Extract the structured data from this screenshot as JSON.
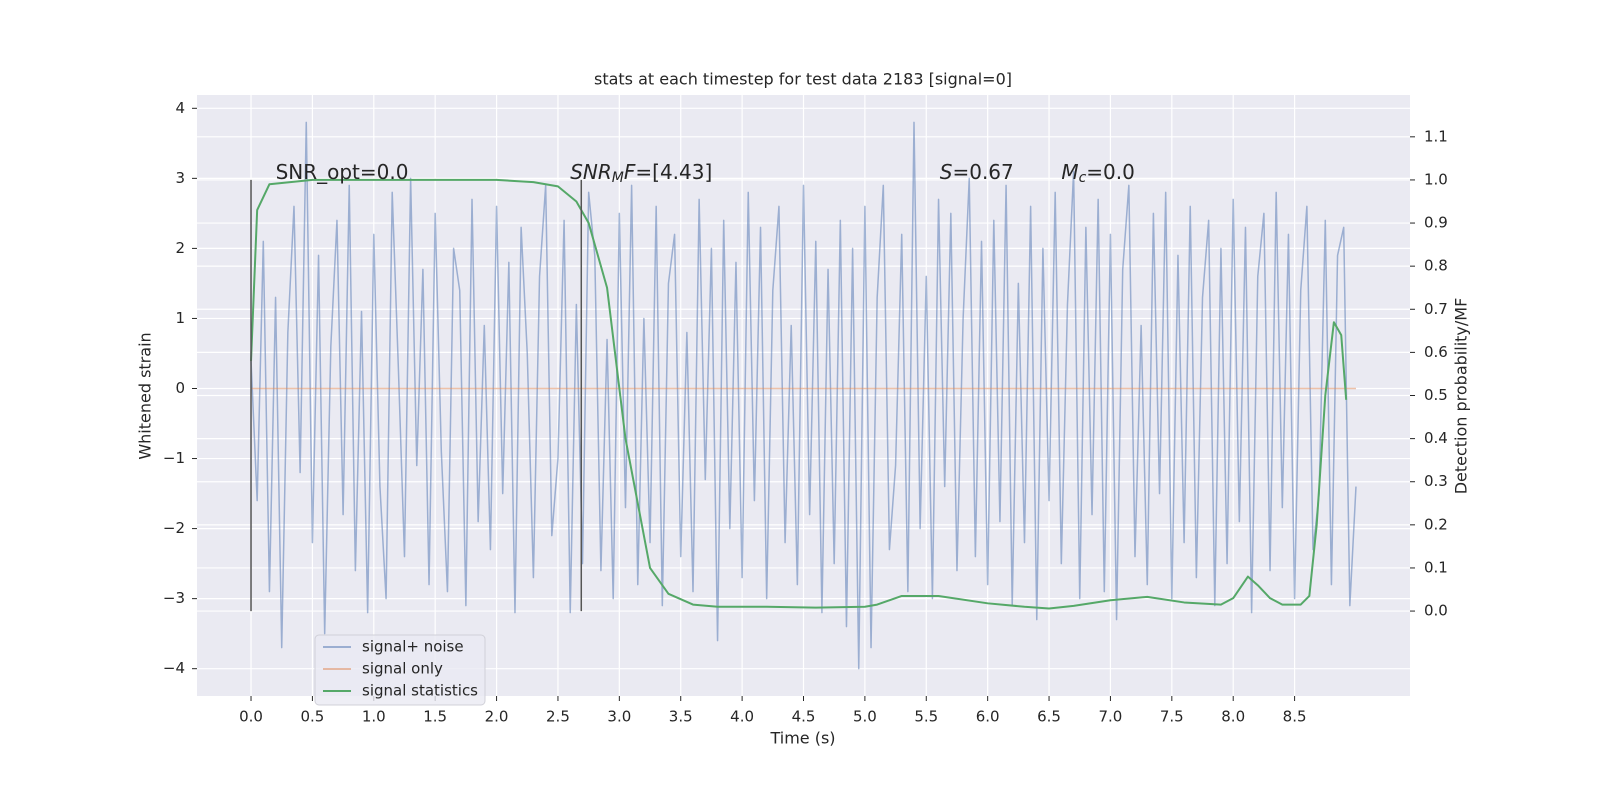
{
  "chart_data": {
    "type": "line",
    "title": "stats at each timestep for test data 2183 [signal=0]",
    "x_label": "Time (s)",
    "y_label": "Whitened strain",
    "y2_label": "Detection probability/MF",
    "xlim": [
      -0.44,
      9.44
    ],
    "ylim": [
      -4.39,
      4.19
    ],
    "y2lim": [
      -0.197,
      1.197
    ],
    "xticks": [
      {
        "value": 0,
        "label": "0.0"
      },
      0.5,
      {
        "value": 1,
        "label": "1.0"
      },
      1.5,
      {
        "value": 2,
        "label": "2.0"
      },
      2.5,
      {
        "value": 3,
        "label": "3.0"
      },
      3.5,
      {
        "value": 4,
        "label": "4.0"
      },
      4.5,
      {
        "value": 5,
        "label": "5.0"
      },
      5.5,
      {
        "value": 6,
        "label": "6.0"
      },
      6.5,
      {
        "value": 7,
        "label": "7.0"
      },
      7.5,
      {
        "value": 8,
        "label": "8.0"
      },
      8.5
    ],
    "yticks": [
      {
        "value": -4,
        "label": "−4"
      },
      {
        "value": -3,
        "label": "−3"
      },
      {
        "value": -2,
        "label": "−2"
      },
      {
        "value": -1,
        "label": "−1"
      },
      0,
      1,
      2,
      3,
      4
    ],
    "y2ticks": [
      {
        "value": 0,
        "label": "0.0"
      },
      0.1,
      0.2,
      0.3,
      0.4,
      0.5,
      0.6,
      0.7,
      0.8,
      0.9,
      {
        "value": 1,
        "label": "1.0"
      },
      1.1
    ],
    "grid": true,
    "legend": "lower left",
    "series": [
      {
        "name": "signal+ noise",
        "color": "#4c72b0",
        "opacity": 0.5,
        "x": [
          0,
          0.05,
          0.1,
          0.15,
          0.2,
          0.25,
          0.3,
          0.35,
          0.4,
          0.45,
          0.5,
          0.55,
          0.6,
          0.65,
          0.7,
          0.75,
          0.8,
          0.85,
          0.9,
          0.95,
          1.0,
          1.05,
          1.1,
          1.15,
          1.2,
          1.25,
          1.3,
          1.35,
          1.4,
          1.45,
          1.5,
          1.55,
          1.6,
          1.65,
          1.7,
          1.75,
          1.8,
          1.85,
          1.9,
          1.95,
          2.0,
          2.05,
          2.1,
          2.15,
          2.2,
          2.25,
          2.3,
          2.35,
          2.4,
          2.45,
          2.5,
          2.55,
          2.6,
          2.65,
          2.7,
          2.75,
          2.8,
          2.85,
          2.9,
          2.95,
          3.0,
          3.05,
          3.1,
          3.15,
          3.2,
          3.25,
          3.3,
          3.35,
          3.4,
          3.45,
          3.5,
          3.55,
          3.6,
          3.65,
          3.7,
          3.75,
          3.8,
          3.85,
          3.9,
          3.95,
          4.0,
          4.05,
          4.1,
          4.15,
          4.2,
          4.25,
          4.3,
          4.35,
          4.4,
          4.45,
          4.5,
          4.55,
          4.6,
          4.65,
          4.7,
          4.75,
          4.8,
          4.85,
          4.9,
          4.95,
          5.0,
          5.05,
          5.1,
          5.15,
          5.2,
          5.25,
          5.3,
          5.35,
          5.4,
          5.45,
          5.5,
          5.55,
          5.6,
          5.65,
          5.7,
          5.75,
          5.8,
          5.85,
          5.9,
          5.95,
          6.0,
          6.05,
          6.1,
          6.15,
          6.2,
          6.25,
          6.3,
          6.35,
          6.4,
          6.45,
          6.5,
          6.55,
          6.6,
          6.65,
          6.7,
          6.75,
          6.8,
          6.85,
          6.9,
          6.95,
          7.0,
          7.05,
          7.1,
          7.15,
          7.2,
          7.25,
          7.3,
          7.35,
          7.4,
          7.45,
          7.5,
          7.55,
          7.6,
          7.65,
          7.7,
          7.75,
          7.8,
          7.85,
          7.9,
          7.95,
          8.0,
          8.05,
          8.1,
          8.15,
          8.2,
          8.25,
          8.3,
          8.35,
          8.4,
          8.45,
          8.5,
          8.55,
          8.6,
          8.65,
          8.7,
          8.75,
          8.8,
          8.85,
          8.9,
          8.95,
          9.0
        ],
        "values": [
          0.4,
          -1.6,
          2.1,
          -2.9,
          1.3,
          -3.7,
          0.8,
          2.6,
          -1.2,
          3.8,
          -2.2,
          1.9,
          -3.5,
          0.6,
          2.4,
          -1.8,
          2.9,
          -2.6,
          1.1,
          -3.2,
          2.2,
          -1.4,
          -3.0,
          2.8,
          0.3,
          -2.4,
          3.0,
          -1.1,
          1.7,
          -2.8,
          2.5,
          -0.9,
          -2.9,
          2.0,
          1.4,
          -3.1,
          2.7,
          -1.9,
          0.9,
          -2.3,
          2.6,
          -1.5,
          1.8,
          -3.2,
          2.3,
          0.5,
          -2.7,
          1.6,
          2.9,
          -2.1,
          -1.0,
          2.4,
          -3.2,
          1.2,
          -2.5,
          2.8,
          1.9,
          -2.6,
          0.7,
          -3.0,
          2.5,
          -1.7,
          2.9,
          -2.8,
          1.0,
          -2.2,
          2.6,
          -3.1,
          1.5,
          2.2,
          -2.4,
          0.8,
          -2.9,
          2.7,
          -1.3,
          2.0,
          -3.6,
          2.4,
          -2.0,
          1.8,
          -2.7,
          2.8,
          -1.6,
          2.3,
          -3.0,
          1.4,
          2.6,
          -2.2,
          0.9,
          -2.8,
          2.9,
          -1.8,
          2.1,
          -3.2,
          1.7,
          -2.5,
          2.4,
          -3.4,
          2.0,
          -4.0,
          2.6,
          -3.7,
          1.3,
          2.9,
          -2.3,
          -1.1,
          2.2,
          -2.9,
          3.8,
          -2.0,
          1.6,
          -3.0,
          2.7,
          -1.4,
          2.5,
          -2.6,
          1.0,
          3.0,
          -2.4,
          2.1,
          -2.8,
          2.4,
          -1.9,
          2.9,
          -3.1,
          1.5,
          -2.2,
          2.6,
          -3.3,
          2.0,
          -1.6,
          2.8,
          -2.5,
          1.2,
          3.1,
          -3.0,
          2.3,
          -1.8,
          2.7,
          -2.9,
          2.2,
          -3.3,
          1.7,
          2.9,
          -2.4,
          0.9,
          -2.8,
          2.5,
          -1.5,
          2.8,
          -3.0,
          1.9,
          -2.2,
          2.6,
          -2.7,
          1.3,
          2.4,
          -3.1,
          2.0,
          -2.5,
          2.7,
          -1.9,
          2.3,
          -3.2,
          1.6,
          2.5,
          -2.6,
          2.8,
          -1.7,
          2.2,
          -3.0,
          1.4,
          2.6,
          -2.3,
          -1.5,
          2.4,
          -2.8,
          1.9,
          2.3,
          -3.1,
          -1.4
        ]
      },
      {
        "name": "signal only",
        "color": "#dd8452",
        "opacity": 0.5,
        "x": [
          0,
          9.0
        ],
        "values": [
          0,
          0
        ]
      },
      {
        "name": "signal statistics",
        "color": "#55a868",
        "opacity": 1,
        "axis": "y2",
        "x": [
          0,
          0.05,
          0.15,
          0.5,
          1.0,
          1.5,
          2.0,
          2.3,
          2.5,
          2.65,
          2.75,
          2.9,
          3.05,
          3.25,
          3.4,
          3.6,
          3.8,
          4.2,
          4.6,
          5.0,
          5.1,
          5.3,
          5.6,
          6.0,
          6.3,
          6.5,
          6.7,
          7.0,
          7.3,
          7.6,
          7.9,
          8.0,
          8.12,
          8.2,
          8.3,
          8.4,
          8.55,
          8.62,
          8.68,
          8.75,
          8.82,
          8.88,
          8.92
        ],
        "values": [
          0.58,
          0.93,
          0.99,
          1.0,
          1.0,
          1.0,
          1.0,
          0.995,
          0.985,
          0.95,
          0.9,
          0.75,
          0.4,
          0.1,
          0.04,
          0.015,
          0.01,
          0.01,
          0.008,
          0.01,
          0.015,
          0.035,
          0.035,
          0.018,
          0.01,
          0.006,
          0.012,
          0.025,
          0.033,
          0.02,
          0.015,
          0.03,
          0.08,
          0.06,
          0.03,
          0.015,
          0.015,
          0.035,
          0.2,
          0.5,
          0.67,
          0.64,
          0.49
        ]
      }
    ],
    "vlines": [
      {
        "x": 0,
        "ymin": 0,
        "ymax": 1,
        "color": "#555555"
      },
      {
        "x": 2.69,
        "ymin": 0,
        "ymax": 1,
        "color": "#555555"
      }
    ],
    "annotations": [
      {
        "x": 0.2,
        "y": 1.016,
        "parts": [
          {
            "text": "SNR_opt=0.0"
          }
        ]
      },
      {
        "x": 2.6,
        "y": 1.016,
        "parts": [
          {
            "text": "SNR",
            "style": "italic"
          },
          {
            "text": "M",
            "style": "sub"
          },
          {
            "text": "F",
            "style": "italic"
          },
          {
            "text": "=[4.43]"
          }
        ]
      },
      {
        "x": 5.61,
        "y": 1.016,
        "parts": [
          {
            "text": "S",
            "style": "italic"
          },
          {
            "text": "=0.67"
          }
        ]
      },
      {
        "x": 6.6,
        "y": 1.016,
        "parts": [
          {
            "text": "M",
            "style": "italic"
          },
          {
            "text": "c",
            "style": "sub"
          },
          {
            "text": "=0.0"
          }
        ]
      }
    ]
  }
}
